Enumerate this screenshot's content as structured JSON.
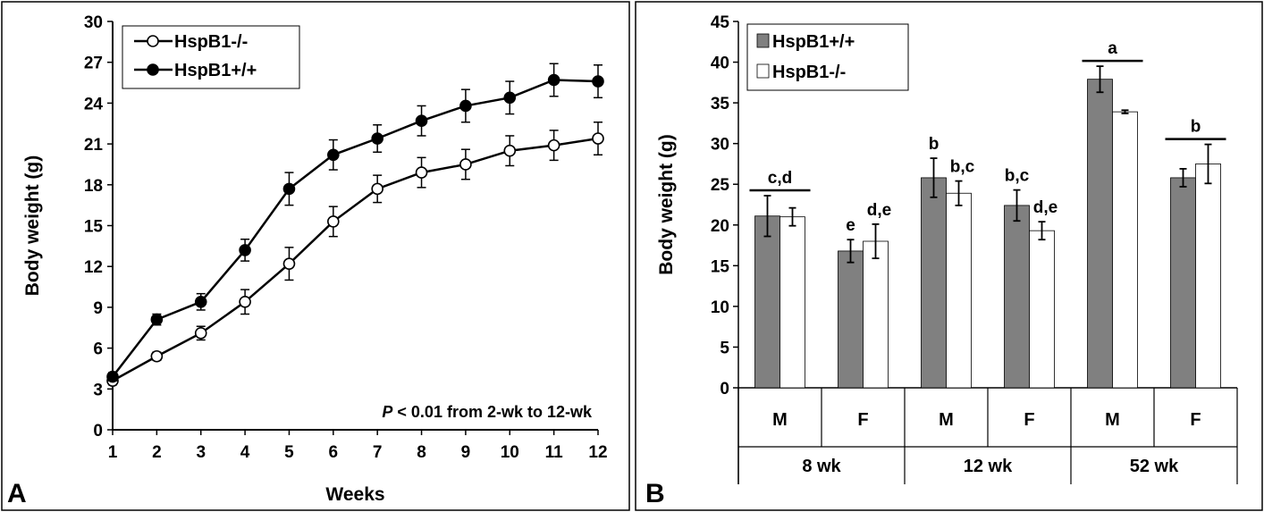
{
  "panels": {
    "a": {
      "letter": "A"
    },
    "b": {
      "letter": "B"
    }
  },
  "chart_data": [
    {
      "type": "line",
      "xlabel": "Weeks",
      "ylabel": "Body weight (g)",
      "xlim": [
        1,
        12
      ],
      "ylim": [
        0,
        30
      ],
      "x": [
        1,
        2,
        3,
        4,
        5,
        6,
        7,
        8,
        9,
        10,
        11,
        12
      ],
      "xticks": [
        "1",
        "2",
        "3",
        "4",
        "5",
        "6",
        "7",
        "8",
        "9",
        "10",
        "11",
        "12"
      ],
      "yticks": [
        "0",
        "3",
        "6",
        "9",
        "12",
        "15",
        "18",
        "21",
        "24",
        "27",
        "30"
      ],
      "grid": false,
      "legend_position": "top-left",
      "annotation": {
        "italic": "P",
        "text": " < 0.01 from 2-wk to 12-wk"
      },
      "series": [
        {
          "name": "HspB1-/-",
          "marker": "open-circle",
          "values": [
            3.6,
            5.4,
            7.1,
            9.4,
            12.2,
            15.3,
            17.7,
            18.9,
            19.5,
            20.5,
            20.9,
            21.4
          ],
          "errors": [
            0.3,
            0.3,
            0.5,
            0.9,
            1.2,
            1.1,
            1.0,
            1.1,
            1.1,
            1.1,
            1.1,
            1.2
          ]
        },
        {
          "name": "HspB1+/+",
          "marker": "filled-circle",
          "values": [
            3.9,
            8.1,
            9.4,
            13.2,
            17.7,
            20.2,
            21.4,
            22.7,
            23.8,
            24.4,
            25.7,
            25.6
          ],
          "errors": [
            0.3,
            0.4,
            0.6,
            0.8,
            1.2,
            1.1,
            1.0,
            1.1,
            1.2,
            1.2,
            1.2,
            1.2
          ]
        }
      ]
    },
    {
      "type": "bar",
      "ylabel": "Body weight (g)",
      "ylim": [
        0,
        45
      ],
      "yticks": [
        "0",
        "5",
        "10",
        "15",
        "20",
        "25",
        "30",
        "35",
        "40",
        "45"
      ],
      "grid": false,
      "legend_position": "top-left",
      "categories": [
        "M",
        "F",
        "M",
        "F",
        "M",
        "F"
      ],
      "groups": [
        "8 wk",
        "12 wk",
        "52 wk"
      ],
      "colors": {
        "HspB1+/+": "#808080",
        "HspB1-/-": "#ffffff"
      },
      "series": [
        {
          "name": "HspB1+/+",
          "values": [
            21.1,
            16.8,
            25.8,
            22.4,
            37.9,
            25.8
          ],
          "errors": [
            2.5,
            1.4,
            2.4,
            1.9,
            1.6,
            1.1
          ]
        },
        {
          "name": "HspB1-/-",
          "values": [
            21.0,
            18.0,
            23.9,
            19.3,
            33.9,
            27.5
          ],
          "errors": [
            1.1,
            2.1,
            1.5,
            1.1,
            0.2,
            2.4
          ]
        }
      ],
      "annotations": [
        {
          "category": 0,
          "text": "c,d",
          "bracket": true
        },
        {
          "category": 1,
          "series": 0,
          "text": "e"
        },
        {
          "category": 1,
          "series": 1,
          "text": "d,e"
        },
        {
          "category": 2,
          "series": 0,
          "text": "b"
        },
        {
          "category": 2,
          "series": 1,
          "text": "b,c"
        },
        {
          "category": 3,
          "series": 0,
          "text": "b,c"
        },
        {
          "category": 3,
          "series": 1,
          "text": "d,e"
        },
        {
          "category": 4,
          "text": "a",
          "bracket": true
        },
        {
          "category": 5,
          "text": "b",
          "bracket": true
        }
      ]
    }
  ]
}
